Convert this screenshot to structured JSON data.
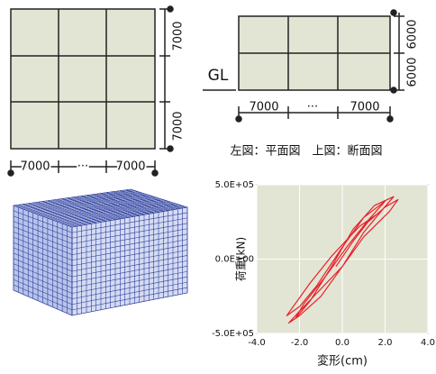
{
  "plan": {
    "right_dims": [
      "7000",
      "7000"
    ],
    "bottom_dims": [
      "7000",
      "···",
      "7000"
    ]
  },
  "section": {
    "ground": "GL",
    "right_dims": [
      "6000",
      "6000"
    ],
    "bottom_dims": [
      "7000",
      "···",
      "7000"
    ]
  },
  "caption": "左図：平面図　上図：断面図",
  "chart_data": {
    "type": "line",
    "color": "#e8202a",
    "grid": true,
    "x_label": "変形(cm)",
    "y_label": "荷重(kN)",
    "xlim": [
      -4,
      4
    ],
    "ylim": [
      -500000,
      500000
    ],
    "xticks": [
      {
        "value": -4,
        "label": "-4.0"
      },
      {
        "value": -2,
        "label": "-2.0"
      },
      {
        "value": 0,
        "label": "0.0"
      },
      {
        "value": 2,
        "label": "2.0"
      },
      {
        "value": 4,
        "label": "4.0"
      }
    ],
    "yticks": [
      {
        "value": -500000,
        "label": "-5.0E+05"
      },
      {
        "value": 0,
        "label": "0.0E+00"
      },
      {
        "value": 500000,
        "label": "5.0E+05"
      }
    ],
    "x": [
      -0.3,
      0.5,
      1.2,
      2,
      2.6,
      2.2,
      1,
      0,
      -1,
      -2,
      -2.5,
      -2,
      -1,
      0,
      1,
      1.8,
      2.4,
      1.5,
      0.5,
      -0.5,
      -1.5,
      -2.2,
      -1.8,
      -0.8,
      0.2,
      1.2,
      2,
      1,
      0,
      -1.2,
      -2,
      -2.6,
      -1.5,
      -0.5,
      0.8,
      1.6
    ],
    "values": [
      -50000,
      120000,
      250000,
      350000,
      400000,
      320000,
      150000,
      -50000,
      -200000,
      -350000,
      -430000,
      -380000,
      -250000,
      -50000,
      180000,
      320000,
      420000,
      360000,
      200000,
      -50000,
      -280000,
      -400000,
      -300000,
      -120000,
      80000,
      260000,
      390000,
      280000,
      80000,
      -180000,
      -320000,
      -380000,
      -160000,
      20000,
      220000,
      300000
    ]
  }
}
